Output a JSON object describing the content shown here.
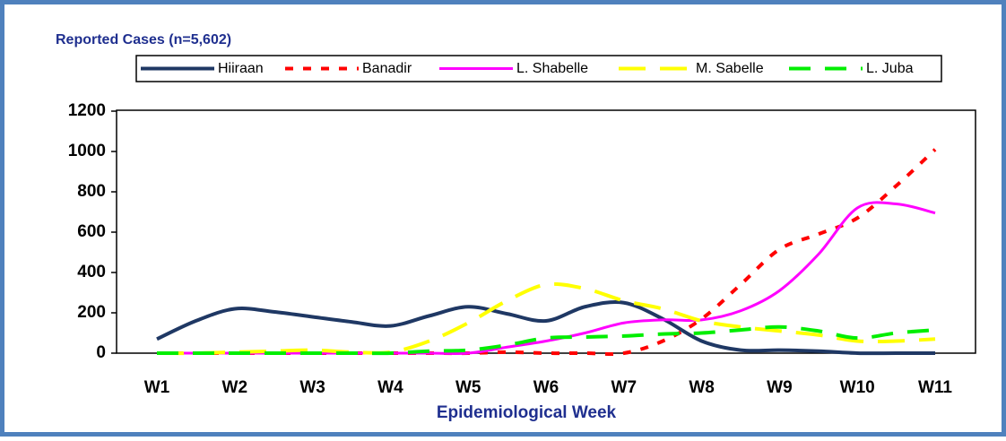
{
  "chart_data": {
    "type": "line",
    "title": "Reported Cases (n=5,602)",
    "xlabel": "Epidemiological Week",
    "categories": [
      "W1",
      null,
      "W2",
      null,
      "W3",
      null,
      "W4",
      null,
      "W5",
      null,
      "W6",
      null,
      "W7",
      null,
      "W8",
      null,
      "W9",
      null,
      "W10",
      null,
      "W11"
    ],
    "series": [
      {
        "name": "Hiiraan",
        "color": "#1f3864",
        "values": [
          70,
          160,
          220,
          205,
          180,
          155,
          135,
          185,
          230,
          195,
          160,
          230,
          250,
          170,
          60,
          15,
          15,
          10,
          0,
          0,
          0
        ]
      },
      {
        "name": "Banadir",
        "color": "#ff0000",
        "values": [
          0,
          0,
          0,
          0,
          0,
          0,
          0,
          0,
          0,
          5,
          0,
          0,
          0,
          60,
          170,
          340,
          515,
          590,
          670,
          830,
          1010
        ]
      },
      {
        "name": "L. Shabelle",
        "color": "#ff00ff",
        "values": [
          0,
          0,
          0,
          0,
          0,
          0,
          0,
          0,
          0,
          30,
          60,
          100,
          150,
          165,
          165,
          210,
          310,
          490,
          720,
          740,
          695
        ]
      },
      {
        "name": "M. Sabelle",
        "color": "#ffff00",
        "values": [
          0,
          0,
          5,
          10,
          15,
          5,
          5,
          60,
          150,
          260,
          340,
          320,
          260,
          220,
          160,
          130,
          110,
          90,
          60,
          60,
          70
        ]
      },
      {
        "name": "L. Juba",
        "color": "#00ee00",
        "values": [
          0,
          0,
          0,
          0,
          0,
          0,
          0,
          10,
          15,
          40,
          75,
          80,
          85,
          95,
          100,
          115,
          130,
          110,
          75,
          100,
          115
        ]
      }
    ],
    "ylim": [
      0,
      1200
    ],
    "yticks": [
      0,
      200,
      400,
      600,
      800,
      1000,
      1200
    ]
  }
}
